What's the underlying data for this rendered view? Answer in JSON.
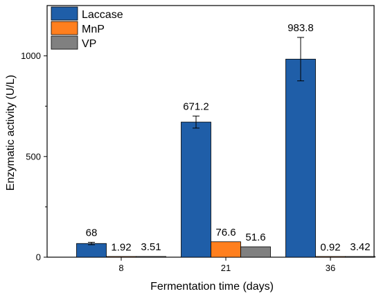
{
  "chart_data": {
    "type": "bar",
    "categories": [
      "8",
      "21",
      "36"
    ],
    "series": [
      {
        "name": "Laccase",
        "color": "#1f5ea8",
        "values": [
          68,
          671.2,
          983.8
        ],
        "errors": [
          6,
          30,
          108
        ],
        "labels": [
          "68",
          "671.2",
          "983.8"
        ]
      },
      {
        "name": "MnP",
        "color": "#ff7f1e",
        "values": [
          1.92,
          76.6,
          0.92
        ],
        "errors": [
          0,
          0,
          0
        ],
        "labels": [
          "1.92",
          "76.6",
          "0.92"
        ]
      },
      {
        "name": "VP",
        "color": "#808080",
        "values": [
          3.51,
          51.6,
          3.42
        ],
        "errors": [
          0,
          0,
          0
        ],
        "labels": [
          "3.51",
          "51.6",
          "3.42"
        ]
      }
    ],
    "xlabel": "Fermentation time (days)",
    "ylabel": "Enzymatic activity (U/L)",
    "ylim": [
      0,
      1250
    ],
    "yticks": [
      0,
      500,
      1000
    ],
    "legend_position": "top-left",
    "grid": false
  }
}
